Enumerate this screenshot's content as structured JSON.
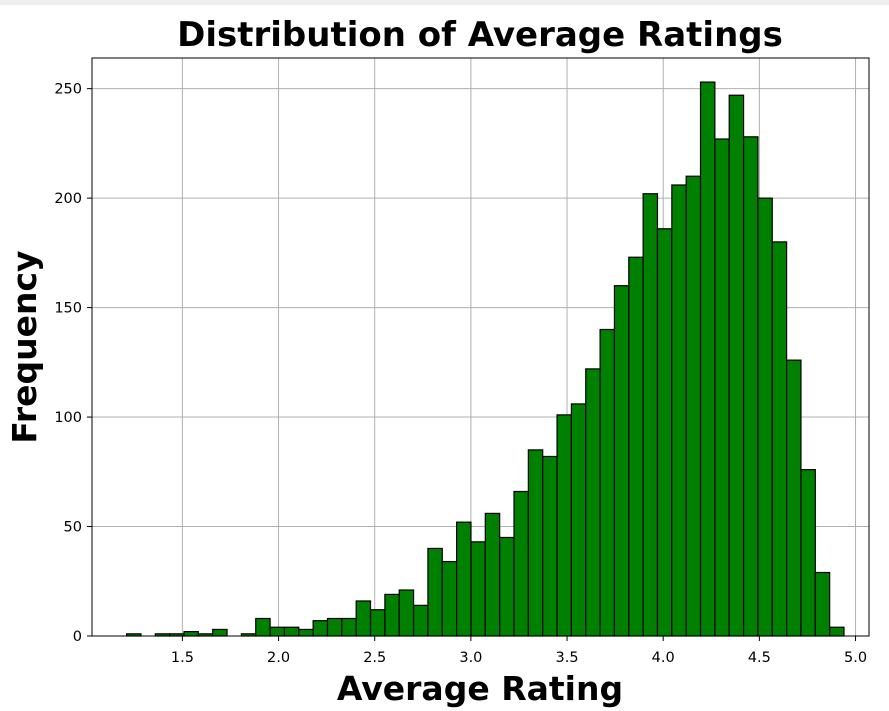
{
  "chart_data": {
    "type": "bar",
    "title": "Distribution of Average Ratings",
    "xlabel": "Average Rating",
    "ylabel": "Frequency",
    "bar_color": "#008000",
    "edge_color": "#000000",
    "grid": true,
    "xlim": [
      1.03,
      5.07
    ],
    "ylim": [
      0,
      264
    ],
    "xticks": [
      1.5,
      2.0,
      2.5,
      3.0,
      3.5,
      4.0,
      4.5,
      5.0
    ],
    "xtick_labels": [
      "1.5",
      "2.0",
      "2.5",
      "3.0",
      "3.5",
      "4.0",
      "4.5",
      "5.0"
    ],
    "yticks": [
      0,
      50,
      100,
      150,
      200,
      250
    ],
    "ytick_labels": [
      "0",
      "50",
      "100",
      "150",
      "200",
      "250"
    ],
    "bin_start": 1.21,
    "bin_width": 0.0746,
    "values": [
      1,
      0,
      1,
      1,
      2,
      1,
      3,
      0,
      1,
      8,
      4,
      4,
      3,
      7,
      8,
      8,
      16,
      12,
      19,
      21,
      14,
      40,
      34,
      52,
      43,
      56,
      45,
      66,
      85,
      82,
      101,
      106,
      122,
      140,
      160,
      173,
      202,
      186,
      206,
      210,
      253,
      227,
      247,
      228,
      200,
      180,
      126,
      76,
      29,
      4
    ]
  }
}
